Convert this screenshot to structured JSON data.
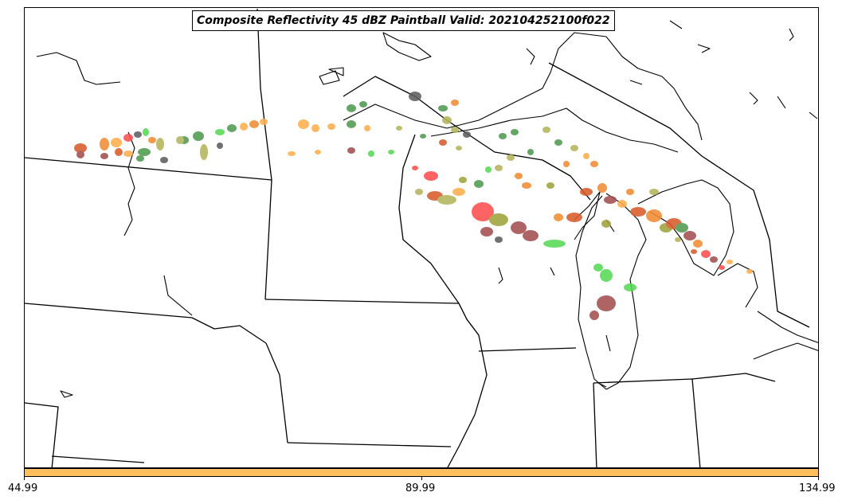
{
  "title": "Composite Reflectivity 45 dBZ Paintball Valid: 202104252100f022",
  "colorbar": {
    "color": "#ffbf5f",
    "ticks": [
      "44.99",
      "89.99",
      "134.99"
    ]
  },
  "member_colors": [
    "#ff4f4f",
    "#d95c2b",
    "#f28c33",
    "#ffae4d",
    "#9ea33b",
    "#b5b55c",
    "#4f9a4f",
    "#57d957",
    "#a34f4f",
    "#5e5e5e"
  ]
}
